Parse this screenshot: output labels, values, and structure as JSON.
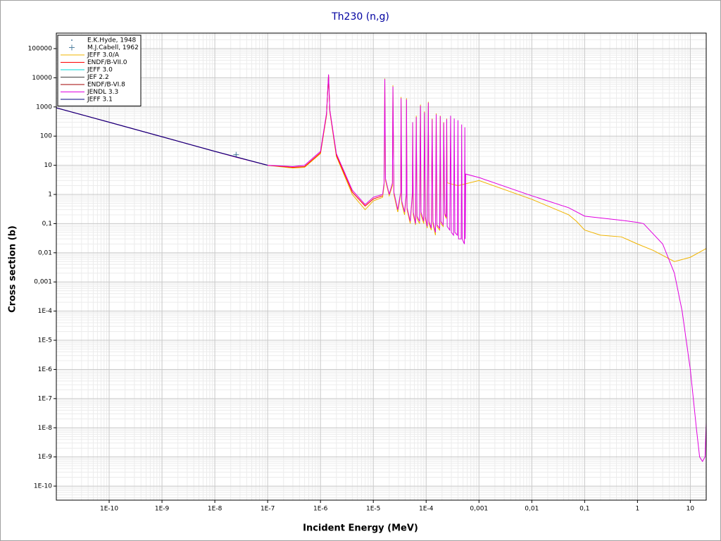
{
  "chart_data": {
    "type": "line",
    "title": "Th230 (n,g)",
    "x_label": "Incident Energy (MeV)",
    "y_label": "Cross section (b)",
    "xscale": "log",
    "yscale": "log",
    "grid": true,
    "legend": "upper left",
    "xlim": [
      1e-11,
      20
    ],
    "ylim": [
      3.3e-11,
      340000
    ],
    "xticks": [
      {
        "value": 1e-10,
        "label": "1E-10"
      },
      {
        "value": 1e-09,
        "label": "1E-9"
      },
      {
        "value": 1e-08,
        "label": "1E-8"
      },
      {
        "value": 1e-07,
        "label": "1E-7"
      },
      {
        "value": 1e-06,
        "label": "1E-6"
      },
      {
        "value": 1e-05,
        "label": "1E-5"
      },
      {
        "value": 0.0001,
        "label": "1E-4"
      },
      {
        "value": 0.001,
        "label": "0,001"
      },
      {
        "value": 0.01,
        "label": "0,01"
      },
      {
        "value": 0.1,
        "label": "0,1"
      },
      1,
      10
    ],
    "yticks": [
      {
        "value": 1e-10,
        "label": "1E-10"
      },
      {
        "value": 1e-09,
        "label": "1E-9"
      },
      {
        "value": 1e-08,
        "label": "1E-8"
      },
      {
        "value": 1e-07,
        "label": "1E-7"
      },
      {
        "value": 1e-06,
        "label": "1E-6"
      },
      {
        "value": 1e-05,
        "label": "1E-5"
      },
      {
        "value": 0.0001,
        "label": "1E-4"
      },
      {
        "value": 0.001,
        "label": "0,001"
      },
      {
        "value": 0.01,
        "label": "0,01"
      },
      {
        "value": 0.1,
        "label": "0,1"
      },
      1,
      10,
      100,
      1000,
      10000,
      100000
    ],
    "series": [
      {
        "name": "E.K.Hyde, 1948",
        "color": "#5080a0",
        "marker": "dot",
        "x": [
          2.53e-08
        ],
        "values": [
          23
        ]
      },
      {
        "name": "M.J.Cabell, 1962",
        "color": "#5080a0",
        "marker": "plus",
        "x": [
          2.53e-08
        ],
        "values": [
          23
        ]
      },
      {
        "name": "JEFF 3.0/A",
        "color": "#f0b400",
        "x": [
          1e-11,
          1e-10,
          1e-09,
          1e-08,
          2.53e-08,
          1e-07,
          3e-07,
          5e-07,
          1e-06,
          1.3e-06,
          1.42e-06,
          1.5e-06,
          2e-06,
          4e-06,
          7e-06,
          1e-05,
          1.5e-05,
          1.6e-05,
          1.65e-05,
          1.7e-05,
          2e-05,
          2.3e-05,
          2.35e-05,
          2.45e-05,
          2.9e-05,
          3.3e-05,
          3.35e-05,
          3.45e-05,
          3.9e-05,
          4.2e-05,
          4.25e-05,
          4.35e-05,
          5e-05,
          5.5e-05,
          5.55e-05,
          5.7e-05,
          6.3e-05,
          6.5e-05,
          6.7e-05,
          7.5e-05,
          7.8e-05,
          8e-05,
          9e-05,
          9.3e-05,
          9.6e-05,
          0.000105,
          0.00011,
          0.000113,
          0.000125,
          0.00013,
          0.000134,
          0.00015,
          0.000155,
          0.00016,
          0.00018,
          0.000185,
          0.00019,
          0.00021,
          0.000215,
          0.000225,
          0.00024,
          0.000245,
          0.00025,
          0.0004,
          0.001,
          0.01,
          0.05,
          0.07,
          0.1,
          0.2,
          0.5,
          1,
          2,
          5,
          10,
          20
        ],
        "values": [
          930,
          300,
          95,
          30,
          19,
          10,
          8,
          8.5,
          25,
          500,
          12000,
          700,
          20,
          1,
          0.3,
          0.6,
          0.8,
          2,
          9500,
          3,
          0.9,
          2,
          5500,
          1,
          0.25,
          1,
          2200,
          0.5,
          0.2,
          0.9,
          2000,
          0.3,
          0.1,
          1,
          300,
          0.2,
          0.09,
          500,
          0.15,
          0.1,
          1200,
          0.2,
          0.1,
          700,
          0.15,
          0.07,
          1500,
          0.1,
          0.06,
          400,
          0.1,
          0.04,
          600,
          0.08,
          0.06,
          500,
          0.1,
          0.08,
          300,
          0.2,
          0.15,
          400,
          2.5,
          2,
          3,
          0.68,
          0.2,
          0.12,
          0.06,
          0.04,
          0.035,
          0.02,
          0.012,
          0.005,
          0.007,
          0.014
        ]
      },
      {
        "name": "ENDF/B-VII.0",
        "color": "#ff0000",
        "x": [
          1e-11,
          1e-10,
          1e-09,
          1e-08,
          2.53e-08,
          1e-07,
          3e-07,
          5e-07,
          1e-06,
          1.3e-06,
          1.42e-06,
          1.5e-06,
          2e-06,
          4e-06,
          7e-06,
          1e-05,
          1.5e-05
        ],
        "values": [
          930,
          300,
          95,
          30,
          19,
          10,
          8.5,
          9,
          27,
          550,
          12500,
          750,
          22,
          1.2,
          0.4,
          0.7,
          0.9
        ]
      },
      {
        "name": "JEFF 3.0",
        "color": "#00d8d8",
        "x": [
          1e-11,
          1e-10,
          1e-09,
          1e-08,
          1e-07
        ],
        "values": [
          930,
          300,
          95,
          30,
          10
        ]
      },
      {
        "name": "JEF 2.2",
        "color": "#404040",
        "x": [
          1e-11,
          1e-10,
          1e-09,
          1e-08,
          1e-07
        ],
        "values": [
          930,
          300,
          95,
          30,
          10
        ]
      },
      {
        "name": "ENDF/B-VI.8",
        "color": "#a00000",
        "x": [
          1e-11,
          1e-10,
          1e-09,
          1e-08,
          1e-07
        ],
        "values": [
          930,
          300,
          95,
          30,
          10
        ]
      },
      {
        "name": "JENDL 3.3",
        "color": "#e000e0",
        "x": [
          1e-11,
          1e-10,
          1e-09,
          1e-08,
          2.53e-08,
          1e-07,
          3e-07,
          5e-07,
          1e-06,
          1.3e-06,
          1.42e-06,
          1.5e-06,
          2e-06,
          4e-06,
          7e-06,
          1e-05,
          1.5e-05,
          1.6e-05,
          1.65e-05,
          1.7e-05,
          2e-05,
          2.3e-05,
          2.35e-05,
          2.45e-05,
          2.9e-05,
          3.3e-05,
          3.35e-05,
          3.45e-05,
          3.9e-05,
          4.2e-05,
          4.25e-05,
          4.35e-05,
          5e-05,
          5.5e-05,
          5.55e-05,
          5.7e-05,
          6.3e-05,
          6.5e-05,
          6.7e-05,
          7.5e-05,
          7.8e-05,
          8e-05,
          9e-05,
          9.3e-05,
          9.6e-05,
          0.000105,
          0.00011,
          0.000113,
          0.000125,
          0.00013,
          0.000134,
          0.00015,
          0.000155,
          0.00016,
          0.00018,
          0.000185,
          0.00019,
          0.00021,
          0.000215,
          0.000225,
          0.00024,
          0.000245,
          0.00025,
          0.00028,
          0.00029,
          0.0003,
          0.00033,
          0.00034,
          0.00035,
          0.00039,
          0.0004,
          0.00041,
          0.00046,
          0.00047,
          0.00048,
          0.00053,
          0.00054,
          0.00055,
          0.00056,
          0.001,
          0.01,
          0.05,
          0.1,
          0.5,
          1,
          1.3,
          3,
          5,
          7,
          10,
          13,
          15,
          17,
          19,
          20
        ],
        "values": [
          930,
          300,
          95,
          30,
          19,
          10,
          9,
          10,
          30,
          600,
          13000,
          800,
          25,
          1.4,
          0.45,
          0.8,
          1,
          2.5,
          9000,
          3.5,
          1,
          2.5,
          5000,
          1.2,
          0.3,
          1.2,
          2000,
          0.6,
          0.25,
          1,
          1800,
          0.35,
          0.12,
          1.2,
          300,
          0.25,
          0.1,
          450,
          0.18,
          0.12,
          1100,
          0.25,
          0.12,
          650,
          0.18,
          0.08,
          1400,
          0.12,
          0.07,
          380,
          0.12,
          0.05,
          550,
          0.09,
          0.07,
          480,
          0.12,
          0.09,
          290,
          0.22,
          0.17,
          380,
          0.08,
          0.06,
          500,
          0.05,
          0.04,
          400,
          0.05,
          0.04,
          350,
          0.03,
          0.03,
          250,
          0.03,
          0.02,
          200,
          0.03,
          5,
          3.8,
          0.9,
          0.35,
          0.18,
          0.13,
          0.11,
          0.1,
          0.02,
          0.002,
          0.0001,
          1e-06,
          1e-08,
          1e-09,
          7e-10,
          1e-09,
          1.5e-08
        ]
      },
      {
        "name": "JEFF 3.1",
        "color": "#000080",
        "x": [
          1e-11,
          1e-10,
          1e-09,
          1e-08,
          1e-07
        ],
        "values": [
          930,
          300,
          95,
          30,
          10
        ]
      }
    ]
  }
}
